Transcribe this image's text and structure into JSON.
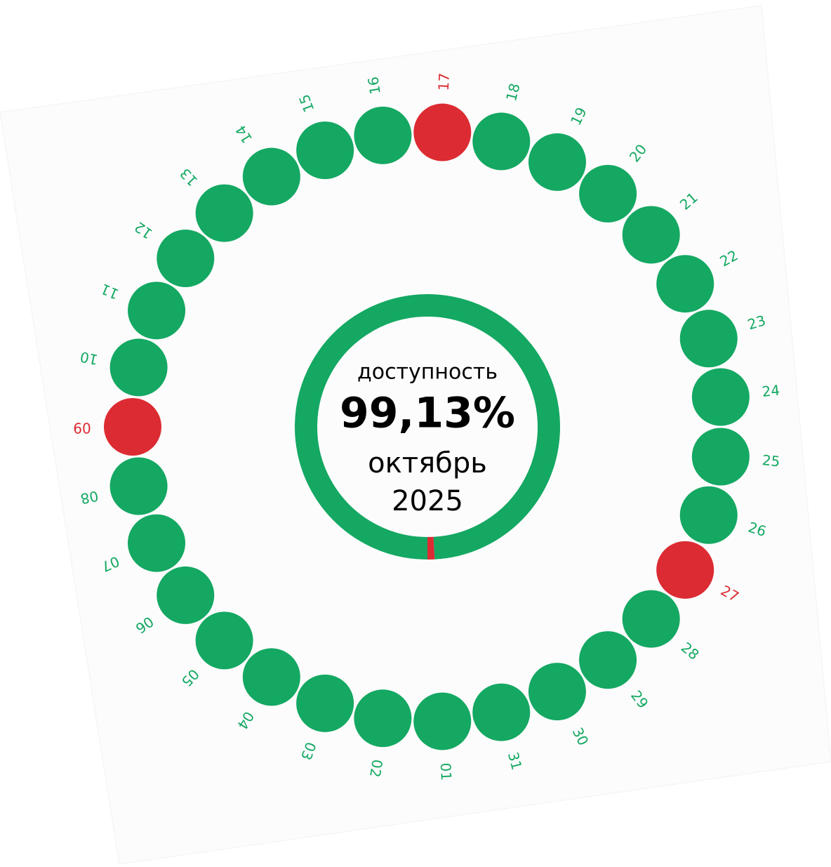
{
  "center": {
    "heading": "доступность",
    "availability": {
      "value": 99.13,
      "label": "99,13%"
    },
    "month": "октябрь",
    "year": "2025"
  },
  "colors": {
    "up": "#14a862",
    "down": "#dc2b33"
  },
  "days": [
    {
      "label": "01",
      "status": "up"
    },
    {
      "label": "02",
      "status": "up"
    },
    {
      "label": "03",
      "status": "up"
    },
    {
      "label": "04",
      "status": "up"
    },
    {
      "label": "05",
      "status": "up"
    },
    {
      "label": "06",
      "status": "up"
    },
    {
      "label": "07",
      "status": "up"
    },
    {
      "label": "08",
      "status": "up"
    },
    {
      "label": "09",
      "status": "down"
    },
    {
      "label": "10",
      "status": "up"
    },
    {
      "label": "11",
      "status": "up"
    },
    {
      "label": "12",
      "status": "up"
    },
    {
      "label": "13",
      "status": "up"
    },
    {
      "label": "14",
      "status": "up"
    },
    {
      "label": "15",
      "status": "up"
    },
    {
      "label": "16",
      "status": "up"
    },
    {
      "label": "17",
      "status": "down"
    },
    {
      "label": "18",
      "status": "up"
    },
    {
      "label": "19",
      "status": "up"
    },
    {
      "label": "20",
      "status": "up"
    },
    {
      "label": "21",
      "status": "up"
    },
    {
      "label": "22",
      "status": "up"
    },
    {
      "label": "23",
      "status": "up"
    },
    {
      "label": "24",
      "status": "up"
    },
    {
      "label": "25",
      "status": "up"
    },
    {
      "label": "26",
      "status": "up"
    },
    {
      "label": "27",
      "status": "down"
    },
    {
      "label": "28",
      "status": "up"
    },
    {
      "label": "29",
      "status": "up"
    },
    {
      "label": "30",
      "status": "up"
    },
    {
      "label": "31",
      "status": "up"
    }
  ]
}
